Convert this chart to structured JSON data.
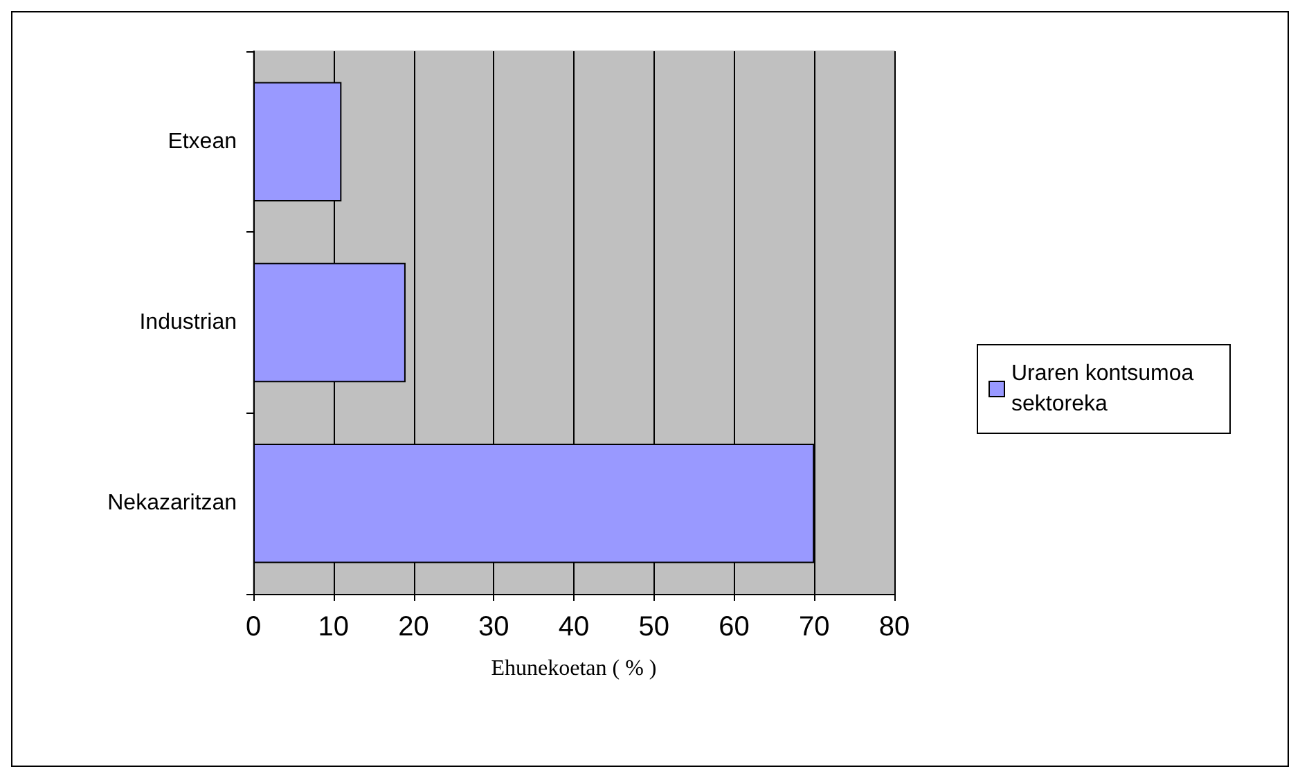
{
  "chart_data": {
    "type": "bar",
    "orientation": "horizontal",
    "categories": [
      "Etxean",
      "Industrian",
      "Nekazaritzan"
    ],
    "series": [
      {
        "name": "Uraren kontsumoa sektoreka",
        "color": "#9999ff",
        "values": [
          11,
          19,
          70
        ]
      }
    ],
    "xlabel": "Ehunekoetan ( % )",
    "xlim": [
      0,
      80
    ],
    "xticks": [
      0,
      10,
      20,
      30,
      40,
      50,
      60,
      70,
      80
    ],
    "grid": "x",
    "legend": "right"
  }
}
